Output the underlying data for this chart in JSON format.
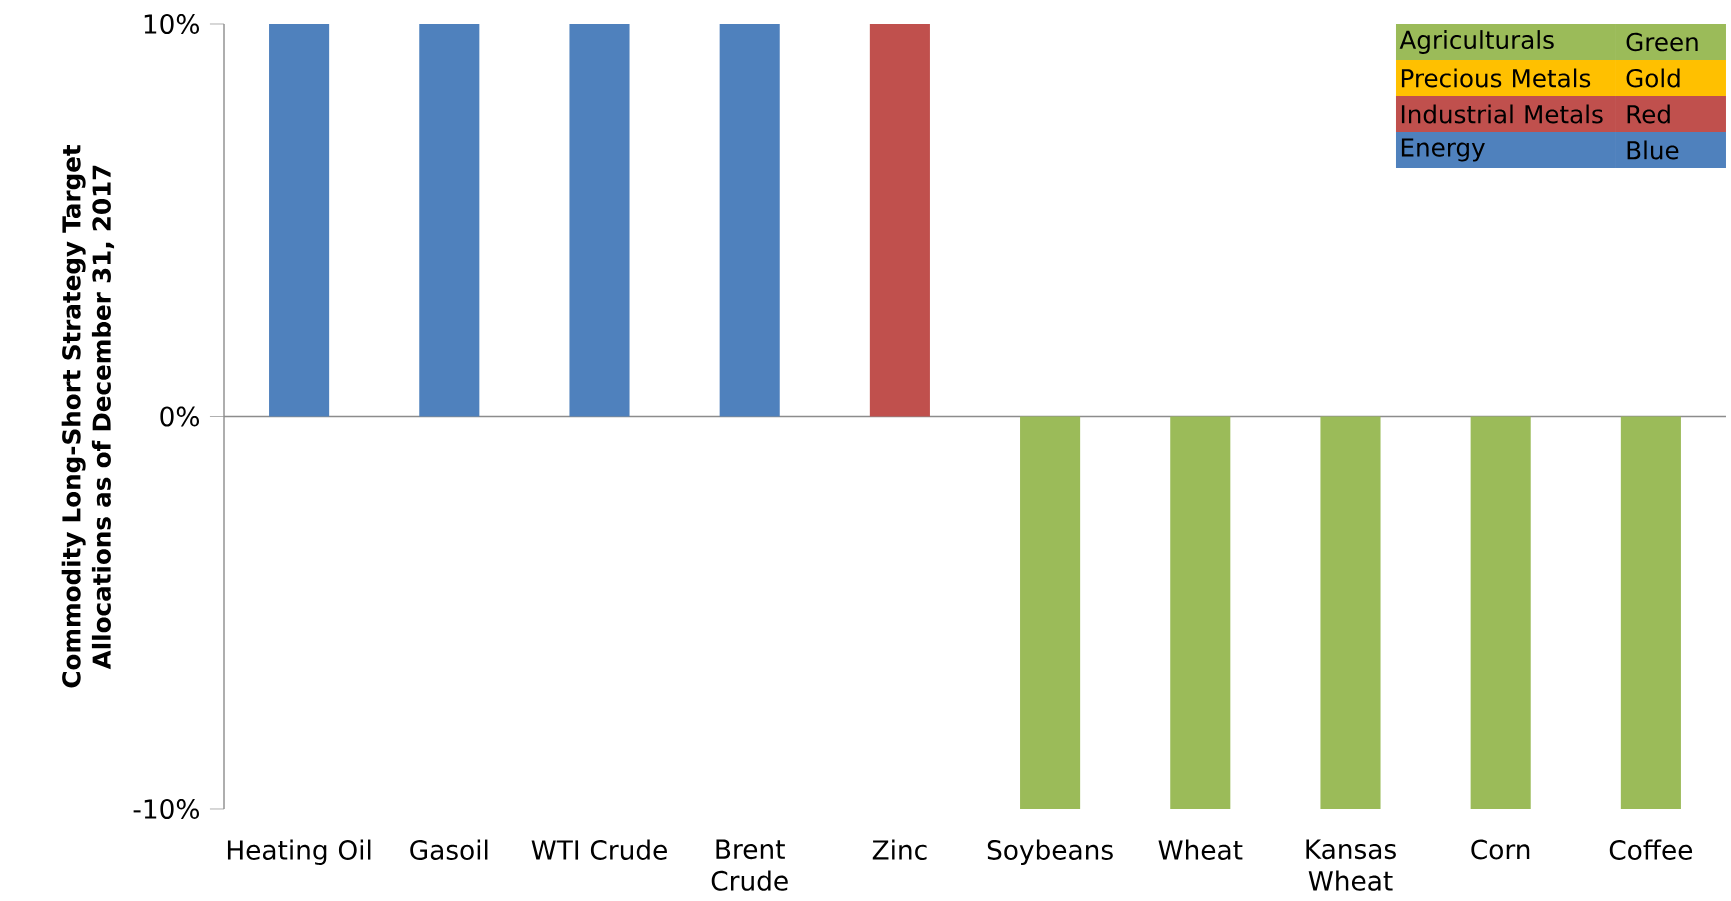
{
  "chart_data": {
    "type": "bar",
    "ylabel": "Commodity Long-Short Strategy  Target Allocations as of December 31, 2017",
    "categories": [
      "Heating Oil",
      "Gasoil",
      "WTI Crude",
      "Brent Crude",
      "Zinc",
      "Soybeans",
      "Wheat",
      "Kansas Wheat",
      "Corn",
      "Coffee"
    ],
    "series": [
      {
        "name": "Agriculturals",
        "color": "#9bbb59",
        "values": [
          null,
          null,
          null,
          null,
          null,
          -10,
          -10,
          -10,
          -10,
          -10
        ]
      },
      {
        "name": "Precious Metals",
        "color": "#ffc000",
        "values": [
          null,
          null,
          null,
          null,
          null,
          null,
          null,
          null,
          null,
          null
        ]
      },
      {
        "name": "Industrial Metals",
        "color": "#c0504d",
        "values": [
          null,
          null,
          null,
          null,
          10,
          null,
          null,
          null,
          null,
          null
        ]
      },
      {
        "name": "Energy",
        "color": "#4f81bd",
        "values": [
          10,
          10,
          10,
          10,
          null,
          null,
          null,
          null,
          null,
          null
        ]
      }
    ],
    "annotations": [
      "Green",
      "Gold",
      "Red",
      "Blue"
    ],
    "ylim": [
      -10,
      10
    ],
    "yticks": [
      {
        "value": -10,
        "label": "-10%"
      },
      {
        "value": 0,
        "label": "0%"
      },
      {
        "value": 10,
        "label": "10%"
      }
    ],
    "legend": "top right"
  }
}
